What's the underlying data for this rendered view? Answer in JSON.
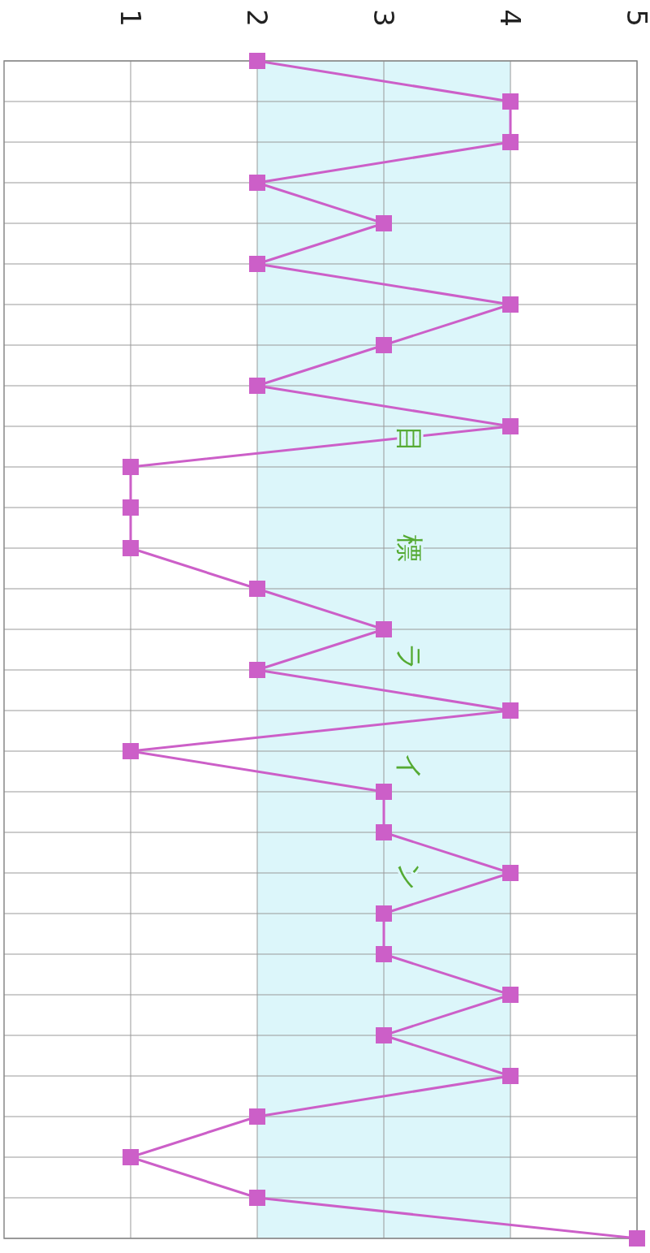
{
  "chart_data": {
    "type": "line",
    "orientation": "horizontal",
    "categories": [
      null,
      null,
      null,
      null,
      null,
      null,
      null,
      null,
      null,
      null,
      null,
      null,
      null,
      null,
      null,
      null,
      null,
      null,
      null,
      null,
      null,
      null,
      null,
      null,
      null,
      null,
      null,
      null,
      null,
      null
    ],
    "values": [
      2,
      4,
      4,
      2,
      3,
      2,
      4,
      3,
      2,
      4,
      1,
      1,
      1,
      2,
      3,
      2,
      4,
      1,
      3,
      3,
      4,
      3,
      3,
      4,
      3,
      4,
      2,
      1,
      2,
      5
    ],
    "color": "#cc5fc8",
    "marker": "square",
    "line_style": "solid",
    "xlim": [
      0,
      5
    ],
    "xticks": [
      1,
      2,
      3,
      4,
      5
    ],
    "grid": true,
    "bands": [
      {
        "axis": "x",
        "from": 2,
        "to": 4,
        "label": "目標ライン",
        "color": "#dcf6fa"
      }
    ]
  }
}
